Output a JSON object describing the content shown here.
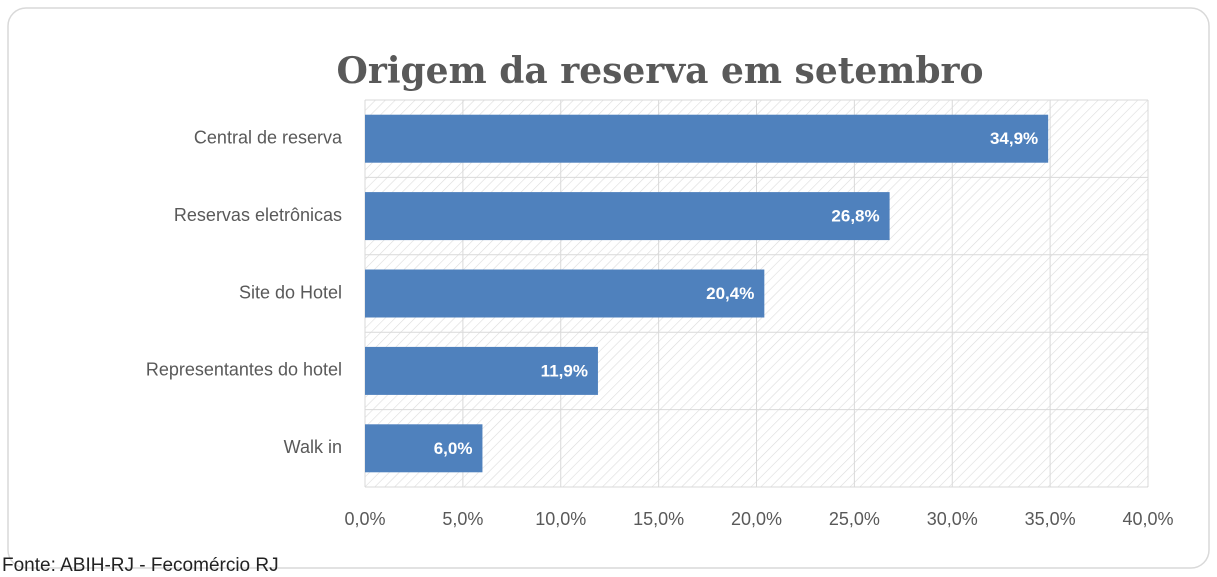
{
  "chart_data": {
    "type": "hbar",
    "title": "Origem da reserva em setembro",
    "categories": [
      "Central de reserva",
      "Reservas eletrônicas",
      "Site do Hotel",
      "Representantes do hotel",
      "Walk in"
    ],
    "values": [
      34.9,
      26.8,
      20.4,
      11.9,
      6.0
    ],
    "value_labels": [
      "34,9%",
      "26,8%",
      "20,4%",
      "11,9%",
      "6,0%"
    ],
    "color": "#4f81bd",
    "xlim": [
      0,
      40
    ],
    "xticks": [
      {
        "value": 0,
        "label": "0,0%"
      },
      {
        "value": 5,
        "label": "5,0%"
      },
      {
        "value": 10,
        "label": "10,0%"
      },
      {
        "value": 15,
        "label": "15,0%"
      },
      {
        "value": 20,
        "label": "20,0%"
      },
      {
        "value": 25,
        "label": "25,0%"
      },
      {
        "value": 30,
        "label": "30,0%"
      },
      {
        "value": 35,
        "label": "35,0%"
      },
      {
        "value": 40,
        "label": "40,0%"
      }
    ],
    "grid": true,
    "source": "Fonte: ABIH-RJ - Fecomércio RJ"
  }
}
